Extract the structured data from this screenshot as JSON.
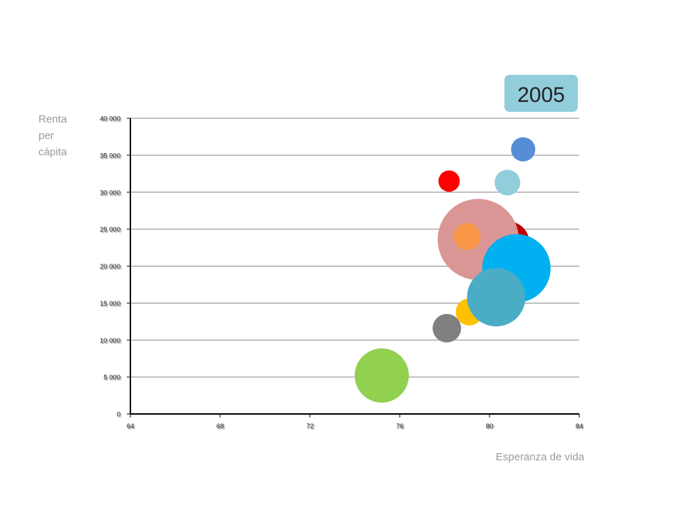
{
  "year_label": "2005",
  "chart_data": {
    "type": "scatter",
    "bubble": true,
    "title": "",
    "xlabel": "Esperanza de vida",
    "ylabel_lines": [
      "Renta",
      "per",
      "cápita"
    ],
    "xlim": [
      64,
      84
    ],
    "ylim": [
      0,
      40000
    ],
    "x_ticks": [
      64,
      68,
      72,
      76,
      80,
      84
    ],
    "x_tick_labels": [
      "64",
      "68",
      "72",
      "76",
      "80",
      "84"
    ],
    "y_ticks": [
      0,
      5000,
      10000,
      15000,
      20000,
      25000,
      30000,
      35000,
      40000
    ],
    "y_tick_labels": [
      "0",
      "5 000",
      "10 000",
      "15 000",
      "20 000",
      "25 000",
      "30 000",
      "35 000",
      "40 000"
    ],
    "grid": true,
    "legend": "none",
    "bubbles": [
      {
        "x": 75.2,
        "y": 5200,
        "size": 38,
        "color": "#92D050"
      },
      {
        "x": 78.1,
        "y": 11600,
        "size": 20,
        "color": "#808080"
      },
      {
        "x": 79.1,
        "y": 13800,
        "size": 19,
        "color": "#FFC000"
      },
      {
        "x": 80.8,
        "y": 23100,
        "size": 31,
        "color": "#C00000"
      },
      {
        "x": 79.5,
        "y": 23600,
        "size": 57,
        "color": "#DA9694"
      },
      {
        "x": 79.0,
        "y": 24000,
        "size": 19,
        "color": "#F79646"
      },
      {
        "x": 81.2,
        "y": 19700,
        "size": 48,
        "color": "#00B0F0"
      },
      {
        "x": 80.3,
        "y": 15800,
        "size": 41,
        "color": "#4BACC6"
      },
      {
        "x": 78.2,
        "y": 31500,
        "size": 15,
        "color": "#FF0000"
      },
      {
        "x": 80.8,
        "y": 31300,
        "size": 18,
        "color": "#92CDDC"
      },
      {
        "x": 81.5,
        "y": 35800,
        "size": 17,
        "color": "#558ED5"
      }
    ]
  },
  "colors": {
    "year_badge": "#92CDDC",
    "axis": "#000000",
    "grid": "#868686",
    "label": "#9a9a9a"
  }
}
